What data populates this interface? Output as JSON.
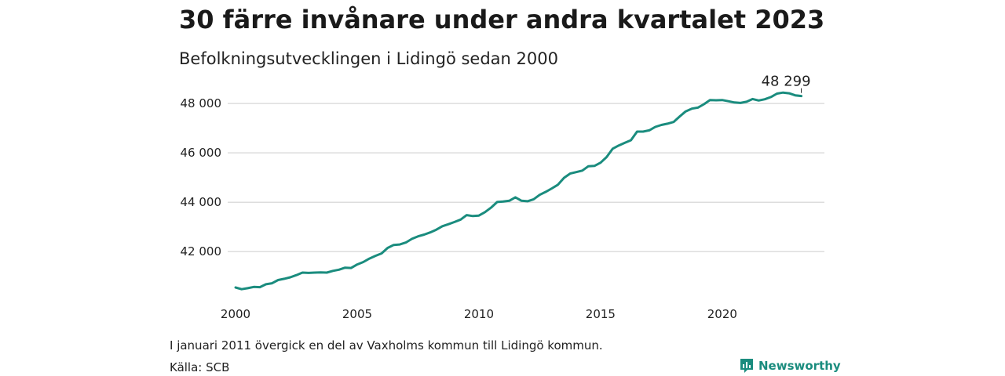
{
  "title": "30 färre invånare under andra kvartalet 2023",
  "subtitle": "Befolkningsutvecklingen i Lidingö sedan 2000",
  "note": "I januari 2011 övergick en del av Vaxholms kommun till Lidingö kommun.",
  "source": "Källa: SCB",
  "brand": {
    "name": "Newsworthy",
    "icon": "newsworthy-logo-icon",
    "color": "#1a8c7e"
  },
  "chart_data": {
    "type": "line",
    "title": "30 färre invånare under andra kvartalet 2023",
    "subtitle": "Befolkningsutvecklingen i Lidingö sedan 2000",
    "xlabel": "",
    "ylabel": "",
    "xlim": [
      2000,
      2024.2
    ],
    "ylim": [
      40200,
      48700
    ],
    "x_ticks": [
      2000,
      2005,
      2010,
      2015,
      2020
    ],
    "x_tick_labels": [
      "2000",
      "2005",
      "2010",
      "2015",
      "2020"
    ],
    "y_ticks": [
      42000,
      44000,
      46000,
      48000
    ],
    "y_tick_labels": [
      "42 000",
      "44 000",
      "46 000",
      "48 000"
    ],
    "grid": "horizontal",
    "line_color": "#1a8c7e",
    "end_label": "48 299",
    "series": [
      {
        "x": [
          2000.0,
          2000.25,
          2000.5,
          2000.75,
          2001.0,
          2001.25,
          2001.5,
          2001.75,
          2002.0,
          2002.25,
          2002.5,
          2002.75,
          2003.0,
          2003.25,
          2003.5,
          2003.75,
          2004.0,
          2004.25,
          2004.5,
          2004.75,
          2005.0,
          2005.25,
          2005.5,
          2005.75,
          2006.0,
          2006.25,
          2006.5,
          2006.75,
          2007.0,
          2007.25,
          2007.5,
          2007.75,
          2008.0,
          2008.25,
          2008.5,
          2008.75,
          2009.0,
          2009.25,
          2009.5,
          2009.75,
          2010.0,
          2010.25,
          2010.5,
          2010.75,
          2011.0,
          2011.25,
          2011.5,
          2011.75,
          2012.0,
          2012.25,
          2012.5,
          2012.75,
          2013.0,
          2013.25,
          2013.5,
          2013.75,
          2014.0,
          2014.25,
          2014.5,
          2014.75,
          2015.0,
          2015.25,
          2015.5,
          2015.75,
          2016.0,
          2016.25,
          2016.5,
          2016.75,
          2017.0,
          2017.25,
          2017.5,
          2017.75,
          2018.0,
          2018.25,
          2018.5,
          2018.75,
          2019.0,
          2019.25,
          2019.5,
          2019.75,
          2020.0,
          2020.25,
          2020.5,
          2020.75,
          2021.0,
          2021.25,
          2021.5,
          2021.75,
          2022.0,
          2022.25,
          2022.5,
          2022.75,
          2023.0,
          2023.25
        ],
        "values": [
          40550,
          40480,
          40520,
          40570,
          40560,
          40680,
          40720,
          40850,
          40900,
          40960,
          41050,
          41150,
          41140,
          41150,
          41160,
          41150,
          41220,
          41270,
          41350,
          41340,
          41480,
          41580,
          41720,
          41830,
          41930,
          42150,
          42270,
          42290,
          42370,
          42520,
          42620,
          42690,
          42780,
          42890,
          43030,
          43110,
          43200,
          43300,
          43480,
          43440,
          43460,
          43600,
          43780,
          44010,
          44030,
          44060,
          44200,
          44060,
          44040,
          44120,
          44300,
          44420,
          44560,
          44710,
          44990,
          45160,
          45220,
          45280,
          45460,
          45470,
          45600,
          45830,
          46170,
          46300,
          46410,
          46510,
          46860,
          46860,
          46910,
          47050,
          47130,
          47180,
          47250,
          47470,
          47680,
          47790,
          47830,
          47970,
          48140,
          48130,
          48140,
          48090,
          48040,
          48020,
          48070,
          48180,
          48120,
          48170,
          48260,
          48400,
          48440,
          48410,
          48330,
          48299
        ]
      }
    ]
  }
}
